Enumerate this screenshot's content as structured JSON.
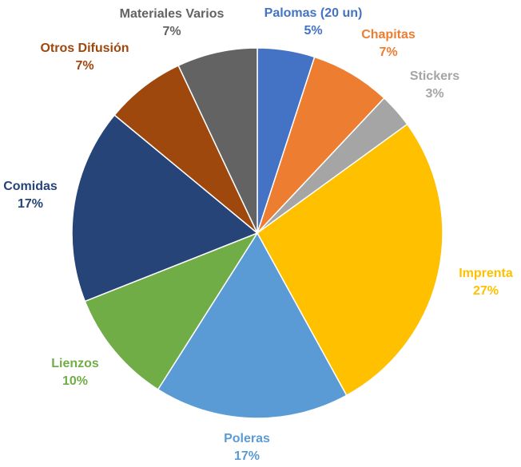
{
  "chart_data": {
    "type": "pie",
    "title": "",
    "labels_shown": "category and percent",
    "slices": [
      {
        "label": "Palomas (20 un)",
        "value": 5,
        "percent_label": "5%",
        "color": "#4472C4"
      },
      {
        "label": "Chapitas",
        "value": 7,
        "percent_label": "7%",
        "color": "#ED7D31"
      },
      {
        "label": "Stickers",
        "value": 3,
        "percent_label": "3%",
        "color": "#A5A5A5"
      },
      {
        "label": "Imprenta",
        "value": 27,
        "percent_label": "27%",
        "color": "#FFC000"
      },
      {
        "label": "Poleras",
        "value": 17,
        "percent_label": "17%",
        "color": "#5B9BD5"
      },
      {
        "label": "Lienzos",
        "value": 10,
        "percent_label": "10%",
        "color": "#70AD47"
      },
      {
        "label": "Comidas",
        "value": 17,
        "percent_label": "17%",
        "color": "#264478"
      },
      {
        "label": "Otros Difusión",
        "value": 7,
        "percent_label": "7%",
        "color": "#9E480E"
      },
      {
        "label": "Materiales Varios",
        "value": 7,
        "percent_label": "7%",
        "color": "#636363"
      }
    ]
  }
}
